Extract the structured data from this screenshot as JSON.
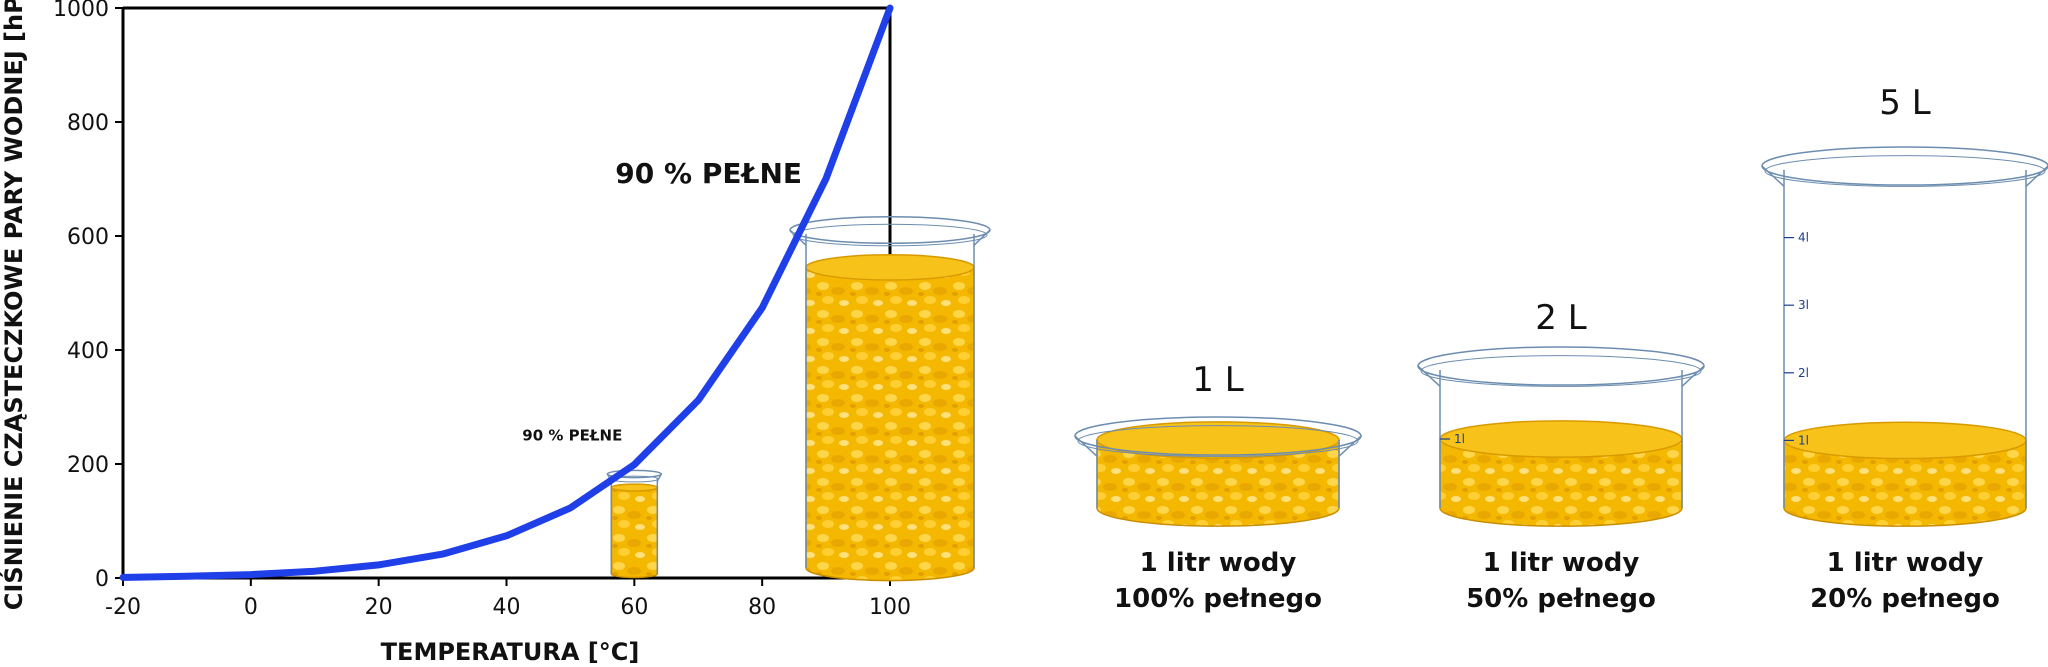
{
  "chart_data": {
    "type": "line",
    "xlabel": "TEMPERATURA [°C]",
    "ylabel": "CIŚNIENIE CZĄSTECZKOWE PARY WODNEJ [hPa]",
    "xlim": [
      -20,
      100
    ],
    "ylim": [
      0,
      1000
    ],
    "xticks": [
      "-20",
      "0",
      "20",
      "40",
      "60",
      "80",
      "100"
    ],
    "yticks": [
      "0",
      "200",
      "400",
      "600",
      "800",
      "1000"
    ],
    "grid": false,
    "series": [
      {
        "color": "#1f3fe8",
        "x": [
          -20,
          -10,
          0,
          10,
          20,
          30,
          40,
          50,
          60,
          70,
          80,
          90,
          100
        ],
        "y": [
          1,
          3,
          6,
          12,
          23,
          42,
          74,
          123,
          199,
          312,
          474,
          701,
          1000
        ]
      }
    ],
    "annotations": [
      {
        "text": "90 % PEŁNE",
        "x": 60,
        "y": 180,
        "size": "small"
      },
      {
        "text": "90 % PEŁNE",
        "x": 100,
        "y": 900,
        "size": "large"
      }
    ]
  },
  "beakers": [
    {
      "volume_label": "1 L",
      "fill_fraction": 1.0,
      "caption_line1": "1 litr wody",
      "caption_line2": "100% pełnego",
      "marks": []
    },
    {
      "volume_label": "2 L",
      "fill_fraction": 0.5,
      "caption_line1": "1 litr wody",
      "caption_line2": "50% pełnego",
      "marks": [
        "1l"
      ]
    },
    {
      "volume_label": "5 L",
      "fill_fraction": 0.2,
      "caption_line1": "1 litr wody",
      "caption_line2": "20% pełnego",
      "marks": [
        "1l",
        "2l",
        "3l",
        "4l"
      ]
    }
  ],
  "colors": {
    "curve": "#1f3fe8",
    "water": "#f5b800",
    "water_top": "#f7c21a",
    "glass": "#6d8db0"
  }
}
